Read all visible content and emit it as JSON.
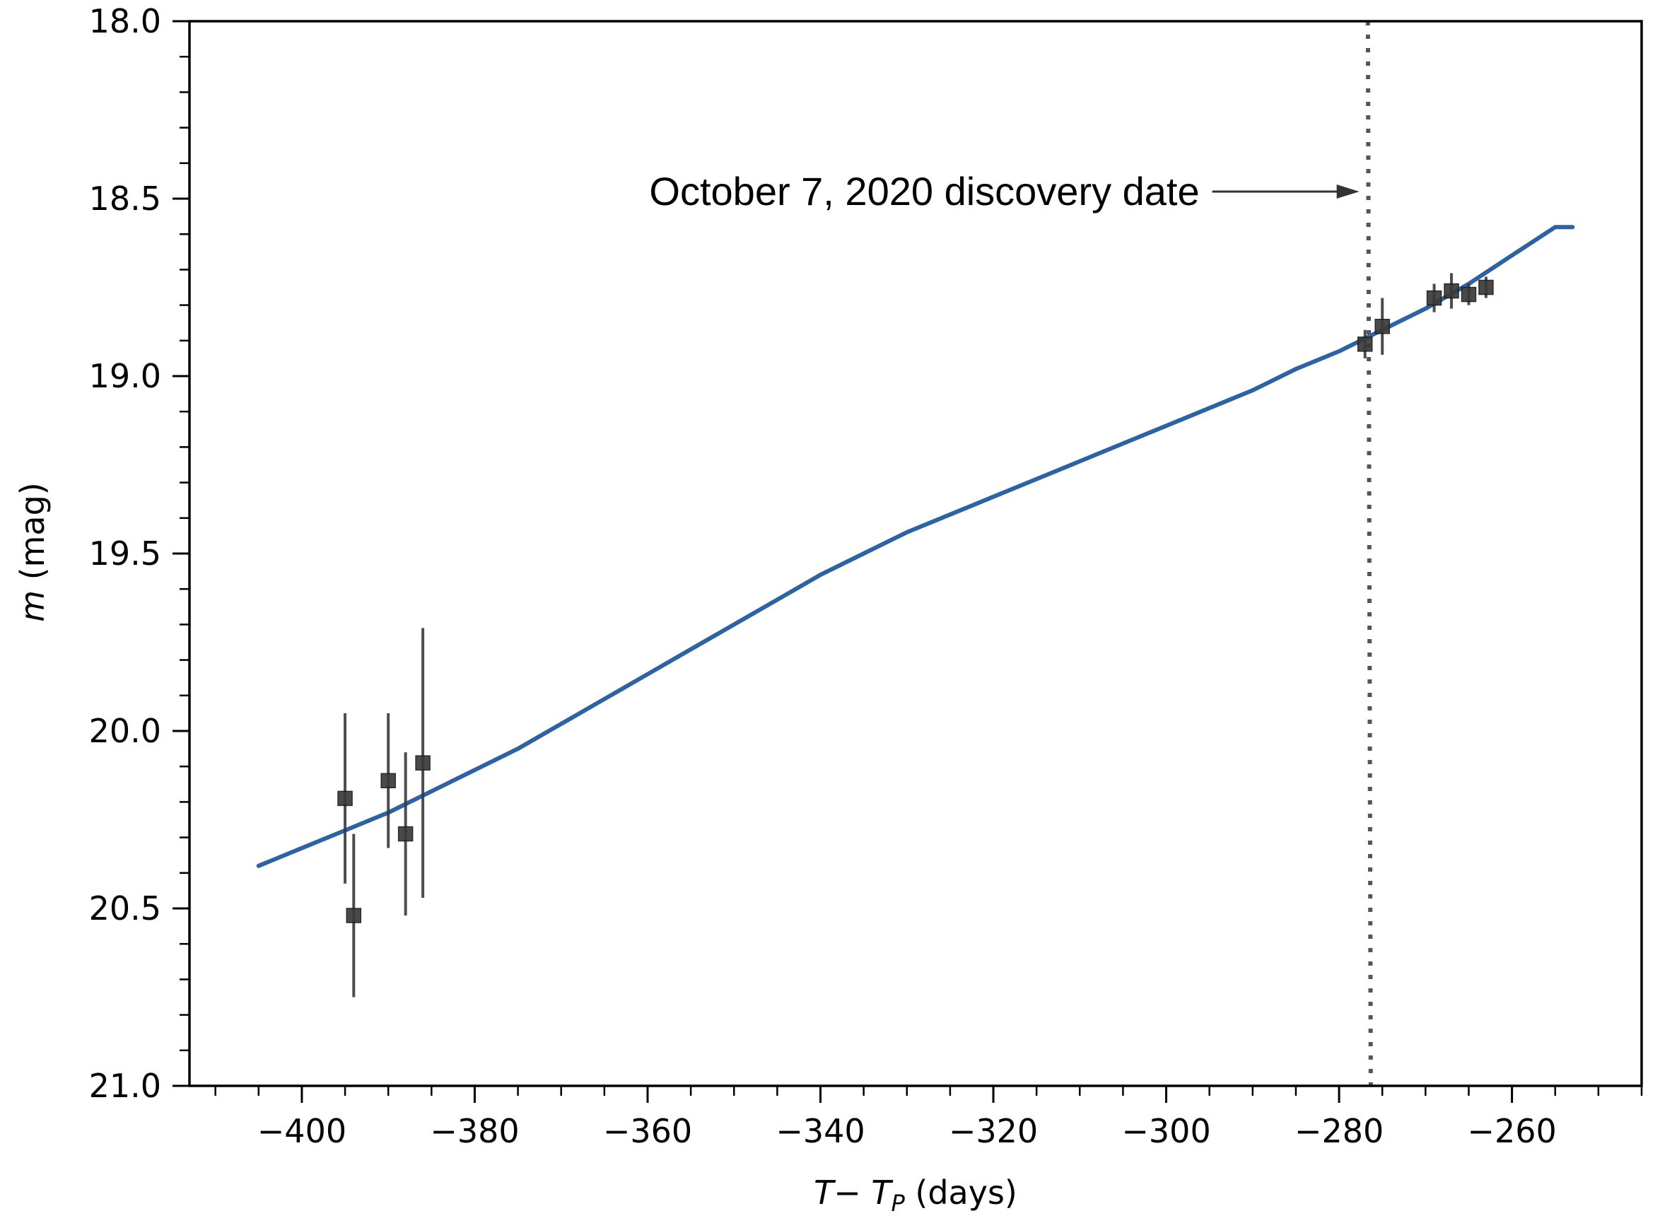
{
  "chart_data": {
    "type": "scatter",
    "xlabel": {
      "main": "T− T",
      "sub": "P",
      "unit": " (days)"
    },
    "ylabel": {
      "main": "m",
      "unit": " (mag)"
    },
    "xlim": [
      -413,
      -245
    ],
    "ylim": [
      21.0,
      18.0
    ],
    "y_inverted": true,
    "x_major_ticks": [
      -400,
      -380,
      -360,
      -340,
      -320,
      -300,
      -280,
      -260
    ],
    "x_major_tick_labels": [
      "−400",
      "−380",
      "−360",
      "−340",
      "−320",
      "−300",
      "−280",
      "−260"
    ],
    "y_major_ticks": [
      18.0,
      18.5,
      19.0,
      19.5,
      20.0,
      20.5,
      21.0
    ],
    "y_major_tick_labels": [
      "18.0",
      "18.5",
      "19.0",
      "19.5",
      "20.0",
      "20.5",
      "21.0"
    ],
    "x_minor_step": 5,
    "y_minor_step": 0.1,
    "grid": false,
    "legend": "none",
    "series": [
      {
        "kind": "points_with_errorbars",
        "marker": "square",
        "color": "#3a3a3a",
        "points": [
          {
            "x": -395.0,
            "y": 20.19,
            "yerr": 0.24
          },
          {
            "x": -394.0,
            "y": 20.52,
            "yerr": 0.23
          },
          {
            "x": -390.0,
            "y": 20.14,
            "yerr": 0.19
          },
          {
            "x": -388.0,
            "y": 20.29,
            "yerr": 0.23
          },
          {
            "x": -386.0,
            "y": 20.09,
            "yerr": 0.38
          },
          {
            "x": -277.0,
            "y": 18.91,
            "yerr": 0.04
          },
          {
            "x": -275.0,
            "y": 18.86,
            "yerr": 0.08
          },
          {
            "x": -269.0,
            "y": 18.78,
            "yerr": 0.04
          },
          {
            "x": -267.0,
            "y": 18.76,
            "yerr": 0.05
          },
          {
            "x": -265.0,
            "y": 18.77,
            "yerr": 0.03
          },
          {
            "x": -263.0,
            "y": 18.75,
            "yerr": 0.03
          }
        ]
      },
      {
        "kind": "line",
        "color": "#2f62a1",
        "x": [
          -405,
          -400,
          -395,
          -390,
          -385,
          -380,
          -375,
          -370,
          -365,
          -360,
          -355,
          -350,
          -345,
          -340,
          -335,
          -330,
          -325,
          -320,
          -315,
          -310,
          -305,
          -300,
          -295,
          -290,
          -285,
          -280,
          -275,
          -270,
          -265,
          -260,
          -255,
          -253
        ],
        "y": [
          20.38,
          20.33,
          20.28,
          20.23,
          20.17,
          20.11,
          20.05,
          19.98,
          19.91,
          19.84,
          19.77,
          19.7,
          19.63,
          19.56,
          19.5,
          19.44,
          19.39,
          19.34,
          19.29,
          19.24,
          19.19,
          19.14,
          19.09,
          19.04,
          18.98,
          18.93,
          18.87,
          18.81,
          18.74,
          18.66,
          18.58,
          18.58
        ]
      }
    ],
    "vline": {
      "x": -276.5,
      "style": "dotted",
      "color": "#555555"
    },
    "annotation": {
      "text": "October 7, 2020 discovery date",
      "x": -277.5,
      "y": 18.48,
      "arrow": "right"
    }
  }
}
